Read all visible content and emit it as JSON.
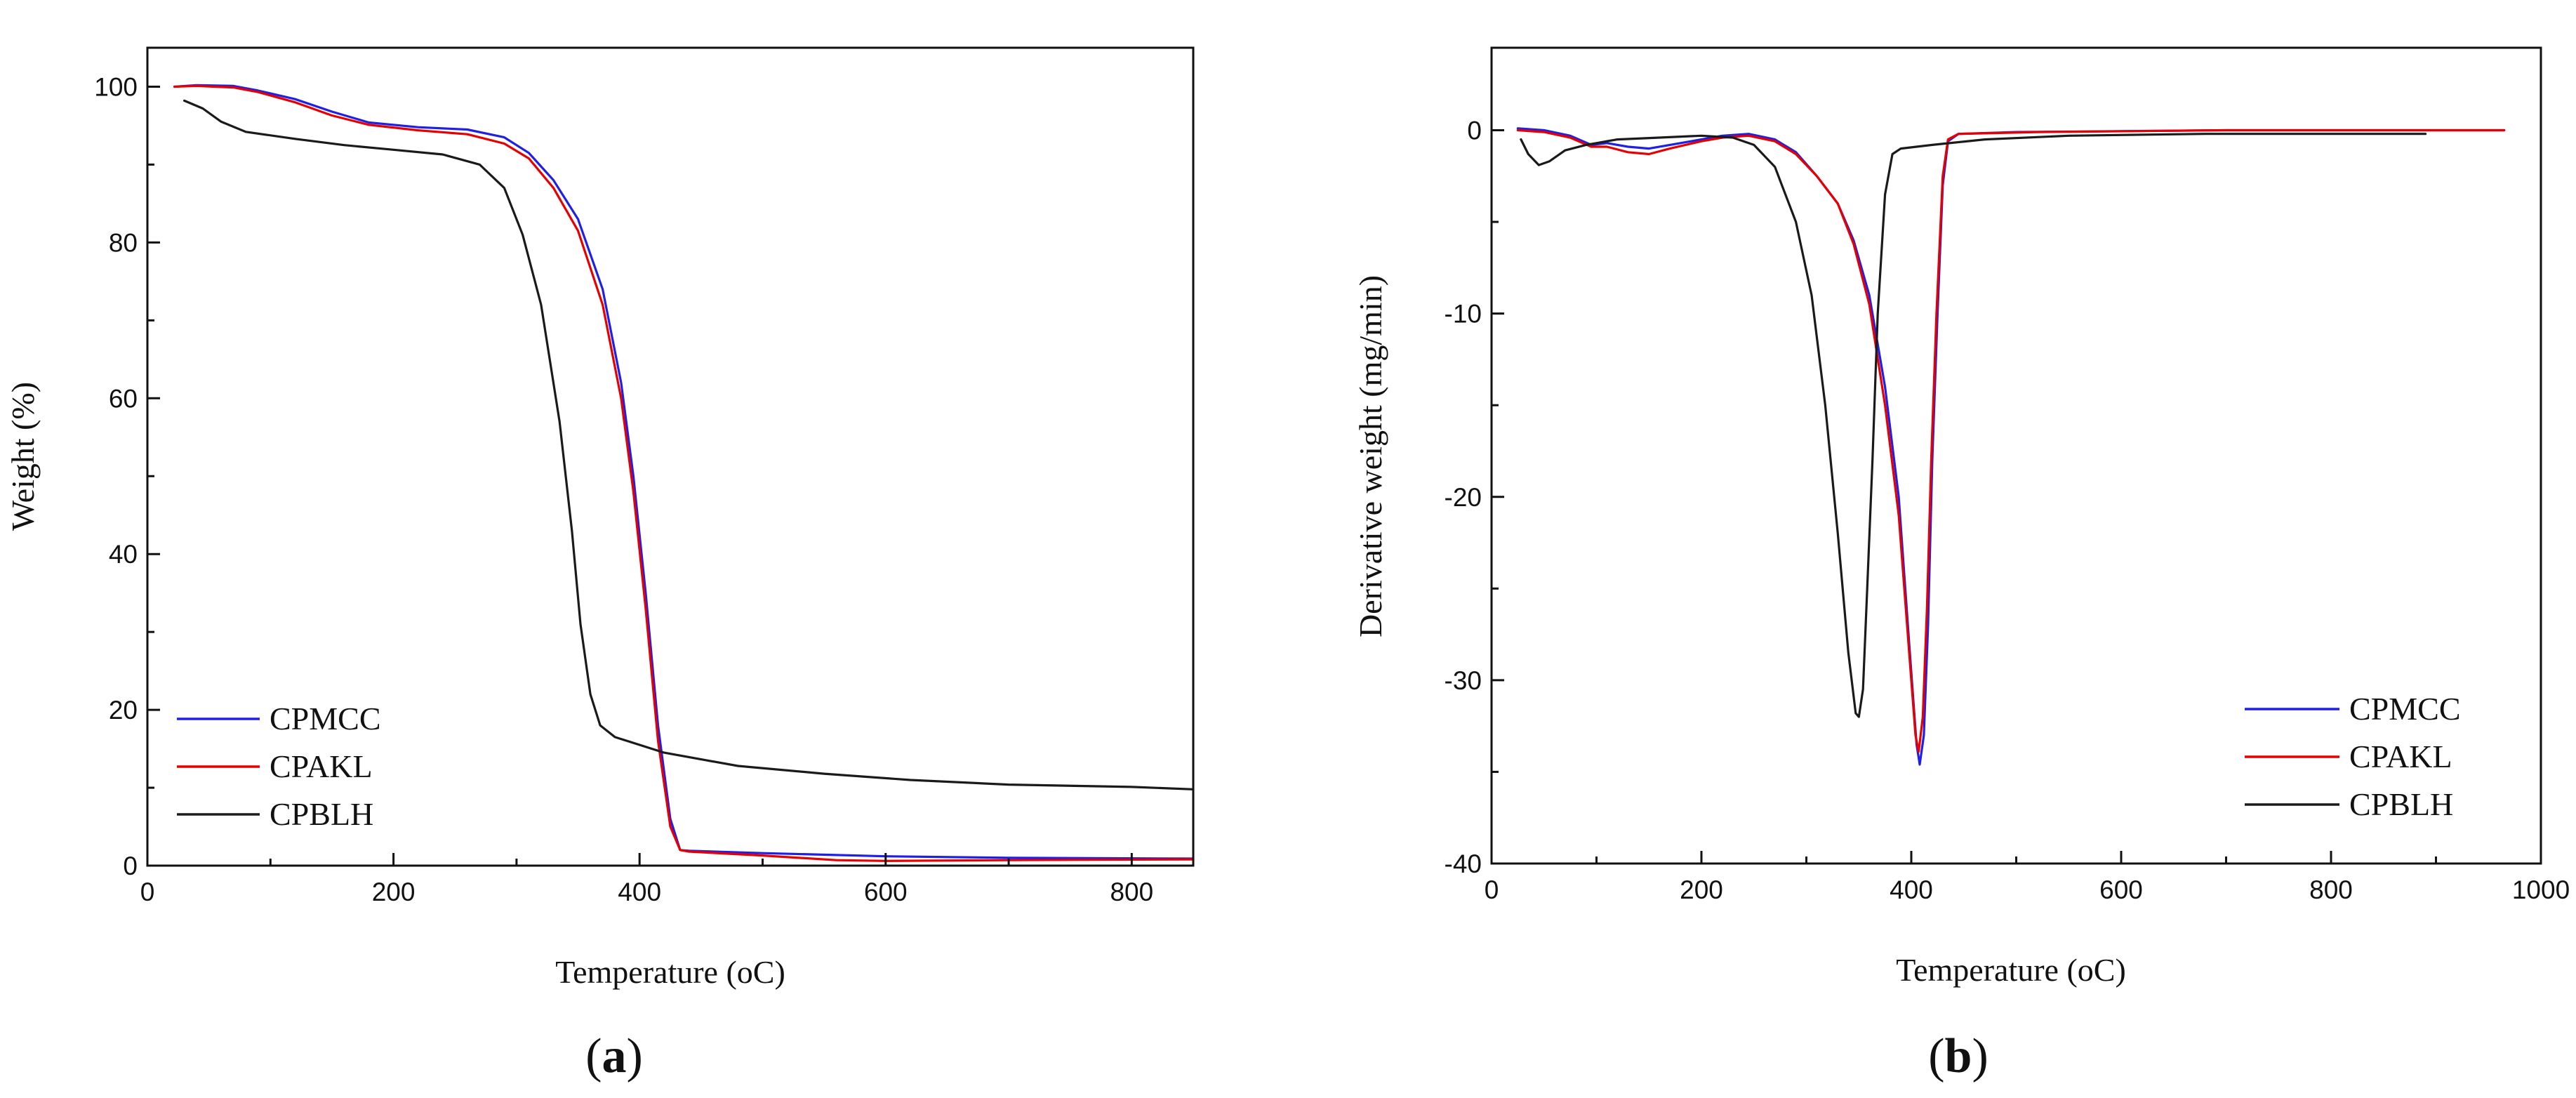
{
  "chart_data": [
    {
      "id": "a",
      "type": "line",
      "panel_label": "a",
      "xlabel": "Temperature",
      "xlabel_unit": "(oC)",
      "ylabel": "Weight (%)",
      "xlim": [
        0,
        850
      ],
      "ylim": [
        0,
        105
      ],
      "x_ticks": [
        0,
        200,
        400,
        600,
        800
      ],
      "y_ticks": [
        0,
        20,
        40,
        60,
        80,
        100
      ],
      "legend_position": "bottom-left",
      "series": [
        {
          "name": "CPMCC",
          "color": "#1f1fe6",
          "points": [
            [
              22,
              100
            ],
            [
              40,
              100.2
            ],
            [
              70,
              100.1
            ],
            [
              90,
              99.5
            ],
            [
              120,
              98.4
            ],
            [
              150,
              96.8
            ],
            [
              180,
              95.4
            ],
            [
              220,
              94.8
            ],
            [
              260,
              94.5
            ],
            [
              290,
              93.5
            ],
            [
              310,
              91.5
            ],
            [
              330,
              88
            ],
            [
              350,
              83
            ],
            [
              370,
              74
            ],
            [
              385,
              62
            ],
            [
              395,
              50
            ],
            [
              405,
              35
            ],
            [
              415,
              18
            ],
            [
              425,
              6
            ],
            [
              433,
              2
            ],
            [
              440,
              1.9
            ],
            [
              500,
              1.6
            ],
            [
              600,
              1.2
            ],
            [
              700,
              1.0
            ],
            [
              850,
              0.9
            ]
          ]
        },
        {
          "name": "CPAKL",
          "color": "#e60000",
          "points": [
            [
              22,
              100
            ],
            [
              40,
              100.1
            ],
            [
              70,
              99.9
            ],
            [
              90,
              99.3
            ],
            [
              120,
              98
            ],
            [
              150,
              96.3
            ],
            [
              180,
              95.1
            ],
            [
              220,
              94.4
            ],
            [
              260,
              93.9
            ],
            [
              290,
              92.7
            ],
            [
              310,
              90.8
            ],
            [
              330,
              87
            ],
            [
              350,
              81.5
            ],
            [
              370,
              72
            ],
            [
              385,
              60
            ],
            [
              395,
              48
            ],
            [
              405,
              33
            ],
            [
              415,
              16
            ],
            [
              425,
              5
            ],
            [
              433,
              2
            ],
            [
              440,
              1.8
            ],
            [
              500,
              1.3
            ],
            [
              560,
              0.7
            ],
            [
              600,
              0.6
            ],
            [
              700,
              0.7
            ],
            [
              850,
              0.8
            ]
          ]
        },
        {
          "name": "CPBLH",
          "color": "#1a1a1a",
          "points": [
            [
              30,
              98.2
            ],
            [
              45,
              97.2
            ],
            [
              60,
              95.5
            ],
            [
              80,
              94.2
            ],
            [
              120,
              93.3
            ],
            [
              160,
              92.5
            ],
            [
              200,
              91.9
            ],
            [
              240,
              91.3
            ],
            [
              270,
              90
            ],
            [
              290,
              87
            ],
            [
              305,
              81
            ],
            [
              320,
              72
            ],
            [
              335,
              57
            ],
            [
              345,
              43
            ],
            [
              352,
              31
            ],
            [
              360,
              22
            ],
            [
              368,
              18
            ],
            [
              380,
              16.5
            ],
            [
              420,
              14.5
            ],
            [
              480,
              12.8
            ],
            [
              550,
              11.8
            ],
            [
              620,
              11
            ],
            [
              700,
              10.4
            ],
            [
              800,
              10.1
            ],
            [
              850,
              9.8
            ]
          ]
        }
      ]
    },
    {
      "id": "b",
      "type": "line",
      "panel_label": "b",
      "xlabel": "Temperature",
      "xlabel_unit": "(oC)",
      "ylabel": "Derivative weight (mg/min)",
      "xlim": [
        0,
        1000
      ],
      "ylim": [
        -40,
        4.5
      ],
      "x_ticks": [
        0,
        200,
        400,
        600,
        800,
        1000
      ],
      "y_ticks": [
        0,
        -10,
        -20,
        -30,
        -40
      ],
      "legend_position": "bottom-right",
      "series": [
        {
          "name": "CPMCC",
          "color": "#1f1fe6",
          "points": [
            [
              25,
              0.1
            ],
            [
              50,
              0
            ],
            [
              75,
              -0.3
            ],
            [
              95,
              -0.8
            ],
            [
              110,
              -0.7
            ],
            [
              130,
              -0.9
            ],
            [
              150,
              -1.0
            ],
            [
              170,
              -0.8
            ],
            [
              200,
              -0.5
            ],
            [
              220,
              -0.3
            ],
            [
              245,
              -0.2
            ],
            [
              270,
              -0.5
            ],
            [
              290,
              -1.2
            ],
            [
              310,
              -2.5
            ],
            [
              330,
              -4
            ],
            [
              345,
              -6
            ],
            [
              360,
              -9
            ],
            [
              375,
              -14
            ],
            [
              388,
              -20
            ],
            [
              398,
              -28
            ],
            [
              405,
              -33.5
            ],
            [
              408,
              -34.6
            ],
            [
              412,
              -33
            ],
            [
              416,
              -27
            ],
            [
              420,
              -18
            ],
            [
              425,
              -10
            ],
            [
              430,
              -3
            ],
            [
              435,
              -0.6
            ],
            [
              445,
              -0.2
            ],
            [
              500,
              -0.1
            ],
            [
              700,
              0
            ],
            [
              965,
              0
            ]
          ]
        },
        {
          "name": "CPAKL",
          "color": "#e60000",
          "points": [
            [
              25,
              0
            ],
            [
              50,
              -0.1
            ],
            [
              75,
              -0.4
            ],
            [
              95,
              -0.9
            ],
            [
              110,
              -0.9
            ],
            [
              130,
              -1.2
            ],
            [
              150,
              -1.3
            ],
            [
              170,
              -1.0
            ],
            [
              200,
              -0.6
            ],
            [
              220,
              -0.4
            ],
            [
              245,
              -0.3
            ],
            [
              270,
              -0.6
            ],
            [
              290,
              -1.3
            ],
            [
              310,
              -2.5
            ],
            [
              330,
              -4
            ],
            [
              345,
              -6.2
            ],
            [
              360,
              -9.5
            ],
            [
              375,
              -15
            ],
            [
              388,
              -21
            ],
            [
              398,
              -28.5
            ],
            [
              404,
              -33
            ],
            [
              407,
              -33.9
            ],
            [
              411,
              -32
            ],
            [
              415,
              -26
            ],
            [
              419,
              -18
            ],
            [
              424,
              -10
            ],
            [
              430,
              -2.5
            ],
            [
              435,
              -0.5
            ],
            [
              445,
              -0.2
            ],
            [
              520,
              -0.1
            ],
            [
              700,
              0
            ],
            [
              965,
              0
            ]
          ]
        },
        {
          "name": "CPBLH",
          "color": "#1a1a1a",
          "points": [
            [
              28,
              -0.5
            ],
            [
              35,
              -1.3
            ],
            [
              45,
              -1.9
            ],
            [
              55,
              -1.7
            ],
            [
              70,
              -1.1
            ],
            [
              90,
              -0.8
            ],
            [
              120,
              -0.5
            ],
            [
              160,
              -0.4
            ],
            [
              200,
              -0.3
            ],
            [
              230,
              -0.4
            ],
            [
              250,
              -0.8
            ],
            [
              270,
              -2
            ],
            [
              290,
              -5
            ],
            [
              305,
              -9
            ],
            [
              318,
              -15
            ],
            [
              330,
              -22
            ],
            [
              340,
              -28.5
            ],
            [
              347,
              -31.8
            ],
            [
              350,
              -32
            ],
            [
              354,
              -30.5
            ],
            [
              358,
              -25
            ],
            [
              363,
              -18
            ],
            [
              368,
              -10
            ],
            [
              375,
              -3.5
            ],
            [
              382,
              -1.3
            ],
            [
              390,
              -1.0
            ],
            [
              420,
              -0.8
            ],
            [
              470,
              -0.5
            ],
            [
              550,
              -0.3
            ],
            [
              680,
              -0.2
            ],
            [
              800,
              -0.2
            ],
            [
              890,
              -0.2
            ]
          ]
        }
      ]
    }
  ]
}
